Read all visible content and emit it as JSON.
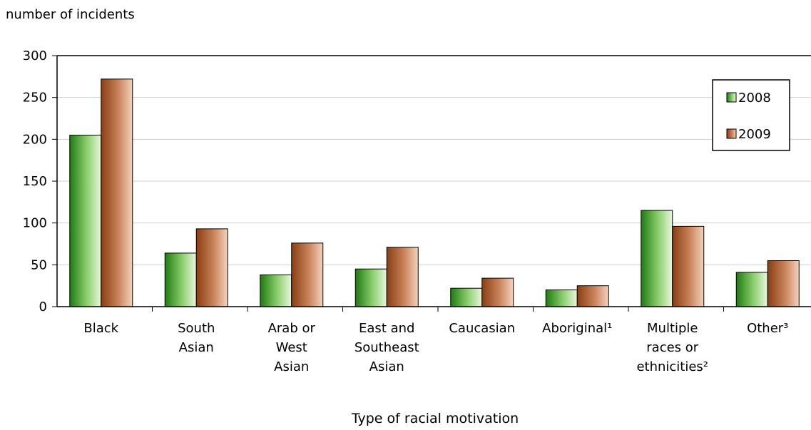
{
  "chart_data": {
    "type": "bar",
    "title": "",
    "ylabel": "number of incidents",
    "xlabel": "Type of racial motivation",
    "ylim": [
      0,
      300
    ],
    "yticks": [
      0,
      50,
      100,
      150,
      200,
      250,
      300
    ],
    "grid": true,
    "legend_position": "top-right",
    "categories": [
      [
        "Black"
      ],
      [
        "South",
        "Asian"
      ],
      [
        "Arab or",
        "West",
        "Asian"
      ],
      [
        "East and",
        "Southeast",
        "Asian"
      ],
      [
        "Caucasian"
      ],
      [
        "Aboriginal¹"
      ],
      [
        "Multiple",
        "races or",
        "ethnicities²"
      ],
      [
        "Other³"
      ]
    ],
    "series": [
      {
        "name": "2008",
        "values": [
          205,
          64,
          38,
          45,
          22,
          20,
          115,
          41
        ],
        "color": "#2e8b22"
      },
      {
        "name": "2009",
        "values": [
          272,
          93,
          76,
          71,
          34,
          25,
          96,
          55
        ],
        "color": "#a0522d"
      }
    ]
  }
}
